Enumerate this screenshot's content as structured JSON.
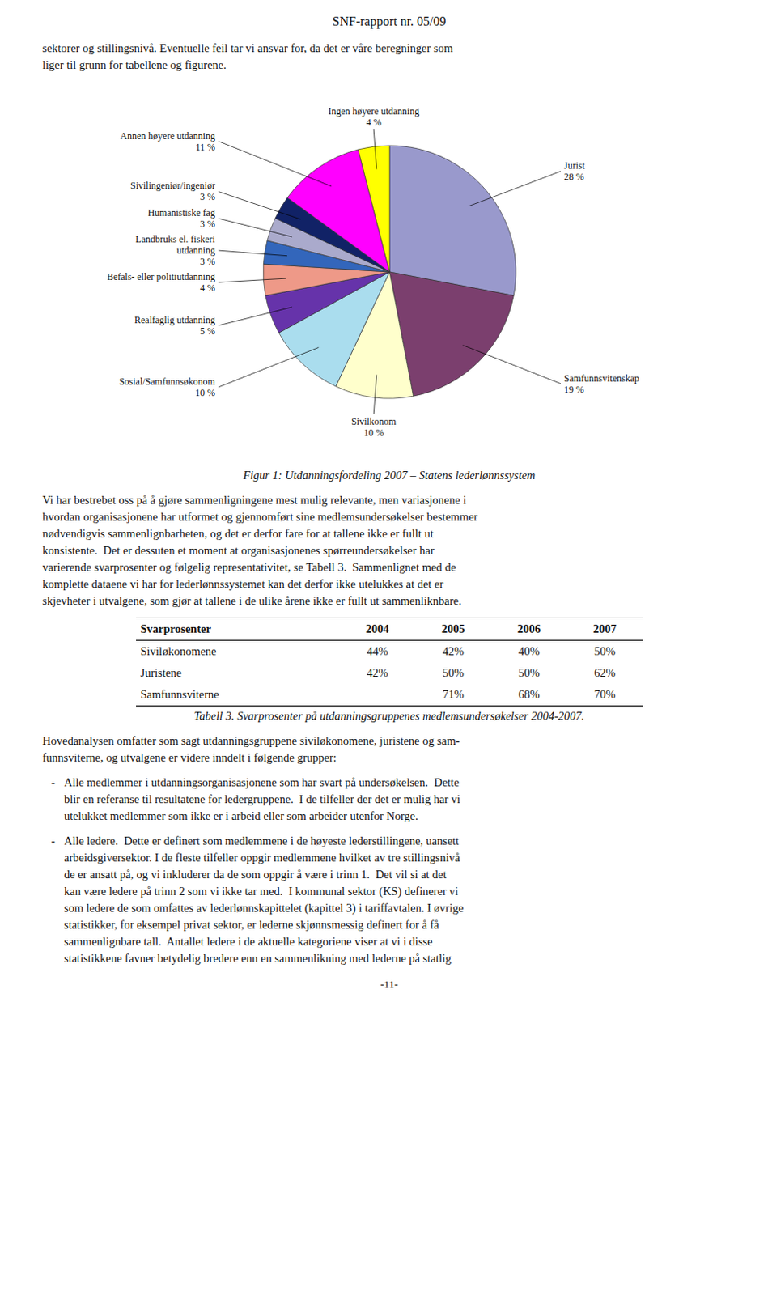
{
  "header": "SNF-rapport nr. 05/09",
  "intro_text": "sektorer og stillingsnivå. Eventuelle feil tar vi ansvar for, da det er våre beregninger som\nliger til grunn for tabellene og figurene.",
  "chart_data": {
    "type": "pie",
    "title": "Figur 1: Utdanningsfordeling 2007 – Statens lederlønnssystem",
    "categories": [
      "Jurist",
      "Samfunnsvitenskap",
      "Sivilkonom",
      "Sosial/Samfunnsøkonom",
      "Realfaglig utdanning",
      "Befals- eller politiutdanning",
      "Landbruks el. fiskeri\nutdanning",
      "Humanistiske fag",
      "Sivilingeniør/ingeniør",
      "Annen høyere utdanning",
      "Ingen høyere utdanning"
    ],
    "values": [
      28,
      19,
      10,
      10,
      5,
      4,
      3,
      3,
      3,
      11,
      4
    ],
    "value_labels": [
      "28 %",
      "19 %",
      "10 %",
      "10 %",
      "5 %",
      "4 %",
      "3 %",
      "3 %",
      "3 %",
      "11 %",
      "4 %"
    ],
    "colors": [
      "#9999CC",
      "#7B3F6E",
      "#FFFFCC",
      "#AADDEE",
      "#6633AA",
      "#EE9988",
      "#3366BB",
      "#AAAACC",
      "#112266",
      "#FF00FF",
      "#FFFF00"
    ],
    "data_labels": true
  },
  "body_text": "Vi har bestrebet oss på å gjøre sammenligningene mest mulig relevante, men variasjonene i\nhvordan organisasjonene har utformet og gjennomført sine medlemsundersøkelser bestemmer\nnødvendigvis sammenlignbarheten, og det er derfor fare for at tallene ikke er fullt ut\nkonsistente.  Det er dessuten et moment at organisasjonenes spørreundersøkelser har\nvarierende svarprosenter og følgelig representativitet, se Tabell 3.  Sammenlignet med de\nkomplette dataene vi har for lederlønnssystemet kan det derfor ikke utelukkes at det er\nskjevheter i utvalgene, som gjør at tallene i de ulike årene ikke er fullt ut sammenliknbare.",
  "table": {
    "header": [
      "Svarprosenter",
      "2004",
      "2005",
      "2006",
      "2007"
    ],
    "rows": [
      [
        "Siviløkonomene",
        "44%",
        "42%",
        "40%",
        "50%"
      ],
      [
        "Juristene",
        "42%",
        "50%",
        "50%",
        "62%"
      ],
      [
        "Samfunnsviterne",
        null,
        "71%",
        "68%",
        "70%"
      ]
    ]
  },
  "table_caption": "Tabell 3. Svarprosenter på utdanningsgruppenes medlemsundersøkelser 2004-2007.",
  "lower_text": "Hovedanalysen omfatter som sagt utdanningsgruppene siviløkonomene, juristene og sam-\nfunnsviterne, og utvalgene er videre inndelt i følgende grupper:",
  "bullet_marker": "-",
  "bullets": [
    {
      "first": "Alle medlemmer i utdanningsorganisasjonene som har svart på undersøkelsen.",
      "rest": "Dette\nblir en referanse til resultatene for ledergruppene.  I de tilfeller der det er mulig har vi\nutelukket medlemmer som ikke er i arbeid eller som arbeider utenfor Norge."
    },
    {
      "first": "Alle ledere.",
      "rest": "Dette er definert som medlemmene i de høyeste lederstillingene, uansett\narbeidsgiversektor. I de fleste tilfeller oppgir medlemmene hvilket av tre stillingsnivå\nde er ansatt på, og vi inkluderer da de som oppgir å være i trinn 1.  Det vil si at det\nkan være ledere på trinn 2 som vi ikke tar med.  I kommunal sektor (KS) definerer vi\nsom ledere de som omfattes av lederlønnskapittelet (kapittel 3) i tariffavtalen. I øvrige\nstatistikker, for eksempel privat sektor, er lederne skjønnsmessig definert for å få\nsammenlignbare tall.  Antallet ledere i de aktuelle kategoriene viser at vi i disse\nstatistikkene favner betydelig bredere enn en sammenlikning med lederne på statlig"
    }
  ],
  "page_number": "-11-",
  "bg_color": "#FFFFFF"
}
